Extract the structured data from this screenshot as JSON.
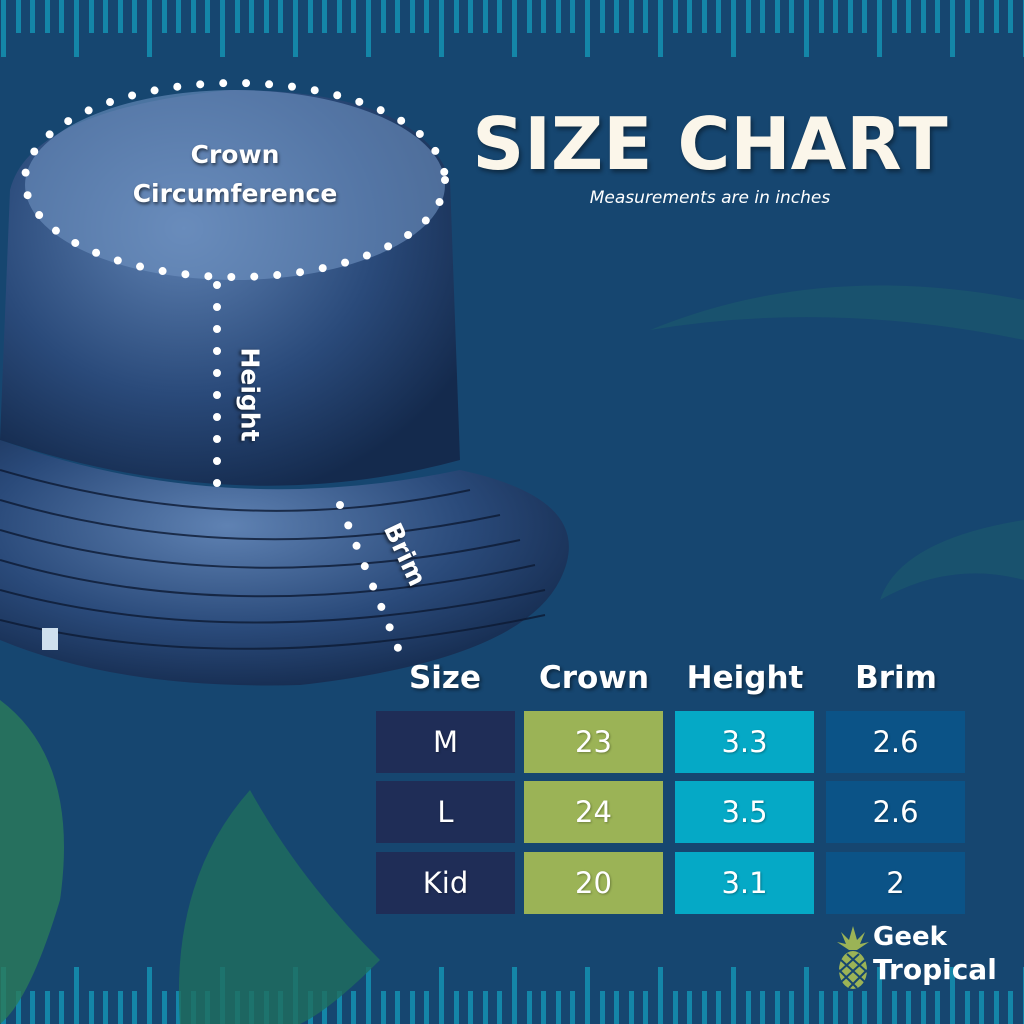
{
  "header": {
    "title": "SIZE CHART",
    "subtitle": "Measurements are in inches"
  },
  "labels": {
    "crown_line1": "Crown",
    "crown_line2": "Circumference",
    "height": "Height",
    "brim": "Brim"
  },
  "table": {
    "columns": [
      "Size",
      "Crown",
      "Height",
      "Brim"
    ],
    "rows": [
      [
        "M",
        "23",
        "3.3",
        "2.6"
      ],
      [
        "L",
        "24",
        "3.5",
        "2.6"
      ],
      [
        "Kid",
        "20",
        "3.1",
        "2"
      ]
    ]
  },
  "colors": {
    "background": "#164670",
    "ruler": "#1486a8",
    "size_cell": "#1f2d57",
    "crown_cell": "#9bb356",
    "height_cell": "#05a9c6",
    "brim_cell": "#0b5387",
    "title": "#fbf6ea"
  },
  "logo": {
    "line1": "Geek",
    "line2": "Tropical",
    "icon": "pineapple-icon"
  }
}
